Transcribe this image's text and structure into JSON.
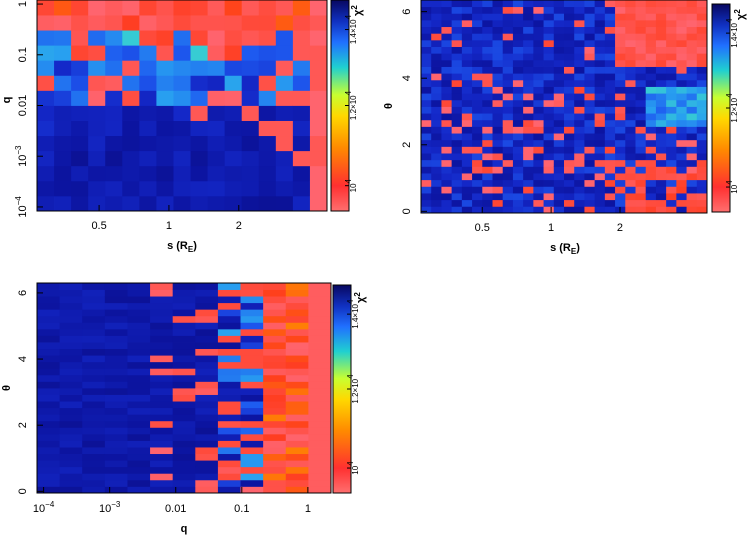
{
  "chart_data": [
    {
      "type": "heatmap",
      "id": "panel-s-q",
      "x_axis": {
        "label_main": "s (R",
        "label_sub": "E",
        "label_end": ")",
        "scale": "log",
        "ticks": [
          {
            "v": 0.5,
            "label": "0.5"
          },
          {
            "v": 1,
            "label": "1"
          },
          {
            "v": 2,
            "label": "2"
          }
        ]
      },
      "y_axis": {
        "label": "q",
        "scale": "log",
        "ticks": [
          {
            "v": -4,
            "base": "10",
            "exp": "−4"
          },
          {
            "v": -3,
            "base": "10",
            "exp": "−3"
          },
          {
            "v": -2,
            "base": "0.01",
            "exp": ""
          },
          {
            "v": -1,
            "base": "0.1",
            "exp": ""
          },
          {
            "v": 0,
            "base": "1",
            "exp": ""
          }
        ]
      },
      "colorbar": {
        "label": "χ",
        "label_sup": "2",
        "ticks": [
          {
            "f": 0.12,
            "base": "10",
            "exp": "4"
          },
          {
            "f": 0.5,
            "base": "1.2×10",
            "exp": "4"
          },
          {
            "f": 0.86,
            "base": "1.4×10",
            "exp": "4"
          }
        ]
      },
      "grid": "17 x 14 cells, χ² intensity (0 = high χ² dark blue, 1 = low χ² pink)"
    },
    {
      "type": "heatmap",
      "id": "panel-s-theta",
      "x_axis": {
        "label_main": "s (R",
        "label_sub": "E",
        "label_end": ")",
        "scale": "log",
        "ticks": [
          {
            "v": 0.5,
            "label": "0.5"
          },
          {
            "v": 1,
            "label": "1"
          },
          {
            "v": 2,
            "label": "2"
          }
        ]
      },
      "y_axis": {
        "label": "θ",
        "scale": "linear",
        "ticks": [
          {
            "v": 0,
            "label": "0"
          },
          {
            "v": 2,
            "label": "2"
          },
          {
            "v": 4,
            "label": "4"
          },
          {
            "v": 6,
            "label": "6"
          }
        ]
      },
      "colorbar": {
        "label": "χ",
        "label_sup": "2",
        "ticks": [
          {
            "f": 0.12,
            "base": "10",
            "exp": "4"
          },
          {
            "f": 0.5,
            "base": "1.2×10",
            "exp": "4"
          },
          {
            "f": 0.86,
            "base": "1.4×10",
            "exp": "4"
          }
        ]
      },
      "grid": "28 x 32 cells"
    },
    {
      "type": "heatmap",
      "id": "panel-q-theta",
      "x_axis": {
        "label_main": "q",
        "label_sub": "",
        "label_end": "",
        "scale": "log",
        "ticks": [
          {
            "v": -4,
            "base": "10",
            "exp": "−4"
          },
          {
            "v": -3,
            "base": "10",
            "exp": "−3"
          },
          {
            "v": -2,
            "base": "0.01",
            "exp": ""
          },
          {
            "v": -1,
            "base": "0.1",
            "exp": ""
          },
          {
            "v": 0,
            "base": "1",
            "exp": ""
          }
        ]
      },
      "y_axis": {
        "label": "θ",
        "scale": "linear",
        "ticks": [
          {
            "v": 0,
            "label": "0"
          },
          {
            "v": 2,
            "label": "2"
          },
          {
            "v": 4,
            "label": "4"
          },
          {
            "v": 6,
            "label": "6"
          }
        ]
      },
      "colorbar": {
        "label": "χ",
        "label_sup": "2",
        "ticks": [
          {
            "f": 0.12,
            "base": "10",
            "exp": "4"
          },
          {
            "f": 0.5,
            "base": "1.2×10",
            "exp": "4"
          },
          {
            "f": 0.86,
            "base": "1.4×10",
            "exp": "4"
          }
        ]
      },
      "grid": "13 x 32 cells"
    }
  ]
}
